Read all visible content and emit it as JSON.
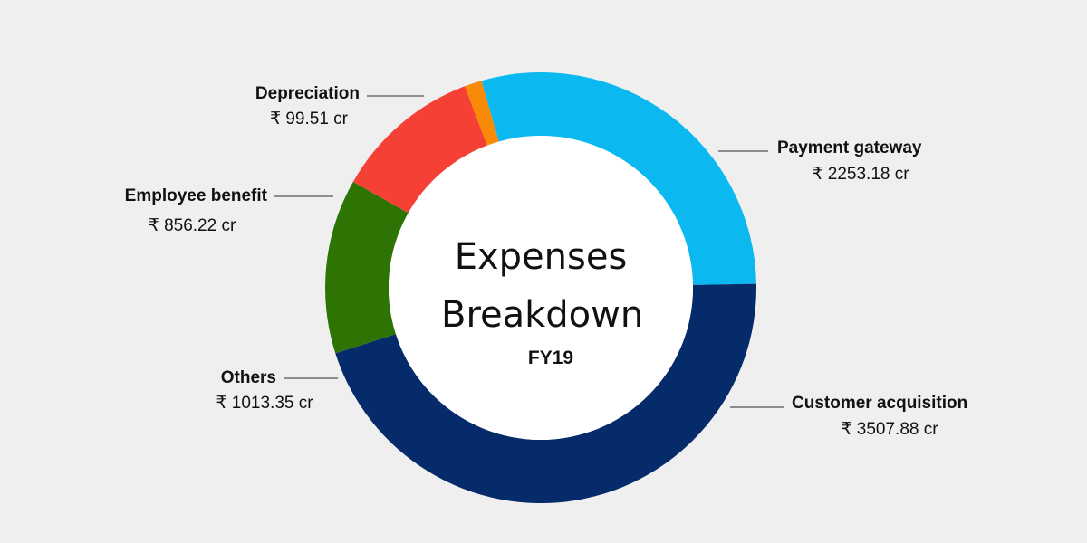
{
  "chart_data": {
    "type": "donut",
    "title": "Expenses Breakdown",
    "subtitle": "FY19",
    "categories": [
      "Payment gateway",
      "Customer acquisition",
      "Others",
      "Employee benefit",
      "Depreciation"
    ],
    "values": [
      2253.18,
      3507.88,
      1013.35,
      856.22,
      99.51
    ],
    "value_labels": [
      "₹ 2253.18 cr",
      "₹ 3507.88 cr",
      "₹ 1013.35 cr",
      "₹ 856.22 cr",
      "₹ 99.51 cr"
    ],
    "colors": [
      "#0bb8ef",
      "#062b6b",
      "#2e7405",
      "#f54036",
      "#f98a08"
    ]
  }
}
